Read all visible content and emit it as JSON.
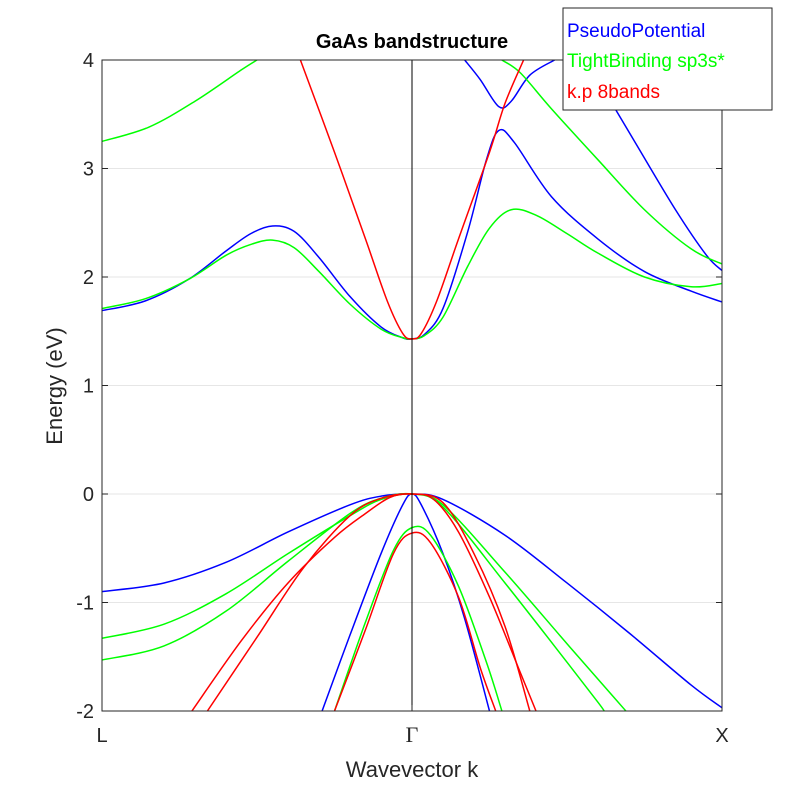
{
  "chart_data": {
    "type": "line",
    "title": "GaAs bandstructure",
    "xlabel": "Wavevector k",
    "ylabel": "Energy (eV)",
    "ylim": [
      -2,
      4
    ],
    "xlim": [
      -1,
      1
    ],
    "yticks": [
      -2,
      -1,
      0,
      1,
      2,
      3,
      4
    ],
    "ytick_labels": [
      "-2",
      "-1",
      "0",
      "1",
      "2",
      "3",
      "4"
    ],
    "xticks": [
      -1,
      0,
      1
    ],
    "xtick_labels": [
      "L",
      "Γ",
      "X"
    ],
    "grid": "horizontal",
    "legend_position": "top-right",
    "x_note": "x = -1 at L, 0 at Gamma, +1 at X",
    "series": [
      {
        "name": "PseudoPotential",
        "color": "#0000ff",
        "bands": [
          [
            [
              -1.0,
              1.69
            ],
            [
              -0.86,
              1.78
            ],
            [
              -0.72,
              1.98
            ],
            [
              -0.6,
              2.24
            ],
            [
              -0.52,
              2.4
            ],
            [
              -0.45,
              2.47
            ],
            [
              -0.38,
              2.42
            ],
            [
              -0.3,
              2.18
            ],
            [
              -0.2,
              1.82
            ],
            [
              -0.1,
              1.54
            ],
            [
              -0.03,
              1.44
            ],
            [
              0.0,
              1.43
            ],
            [
              0.04,
              1.47
            ],
            [
              0.1,
              1.71
            ],
            [
              0.18,
              2.42
            ],
            [
              0.24,
              3.08
            ],
            [
              0.28,
              3.35
            ],
            [
              0.33,
              3.24
            ],
            [
              0.45,
              2.74
            ],
            [
              0.6,
              2.35
            ],
            [
              0.75,
              2.05
            ],
            [
              0.9,
              1.87
            ],
            [
              1.0,
              1.77
            ]
          ],
          [
            [
              0.17,
              4.0
            ],
            [
              0.22,
              3.82
            ],
            [
              0.28,
              3.57
            ],
            [
              0.32,
              3.62
            ],
            [
              0.38,
              3.86
            ],
            [
              0.46,
              4.0
            ]
          ],
          [
            [
              0.56,
              4.0
            ],
            [
              0.62,
              3.72
            ],
            [
              0.72,
              3.24
            ],
            [
              0.85,
              2.62
            ],
            [
              0.95,
              2.2
            ],
            [
              1.0,
              2.06
            ]
          ],
          [
            [
              -1.0,
              -0.9
            ],
            [
              -0.8,
              -0.82
            ],
            [
              -0.6,
              -0.63
            ],
            [
              -0.4,
              -0.35
            ],
            [
              -0.2,
              -0.1
            ],
            [
              -0.1,
              -0.02
            ],
            [
              0.0,
              0.0
            ],
            [
              0.1,
              -0.05
            ],
            [
              0.3,
              -0.38
            ],
            [
              0.5,
              -0.82
            ],
            [
              0.7,
              -1.28
            ],
            [
              0.9,
              -1.76
            ],
            [
              1.0,
              -1.97
            ]
          ],
          [
            [
              -0.29,
              -2.0
            ],
            [
              -0.2,
              -1.3
            ],
            [
              -0.1,
              -0.55
            ],
            [
              -0.03,
              -0.1
            ],
            [
              0.0,
              0.0
            ],
            [
              0.03,
              -0.1
            ],
            [
              0.1,
              -0.55
            ],
            [
              0.17,
              -1.15
            ],
            [
              0.25,
              -2.0
            ]
          ]
        ]
      },
      {
        "name": "TightBinding sp3s*",
        "color": "#00ff00",
        "bands": [
          [
            [
              -1.0,
              1.71
            ],
            [
              -0.86,
              1.8
            ],
            [
              -0.72,
              1.98
            ],
            [
              -0.6,
              2.2
            ],
            [
              -0.52,
              2.3
            ],
            [
              -0.45,
              2.34
            ],
            [
              -0.38,
              2.27
            ],
            [
              -0.3,
              2.05
            ],
            [
              -0.2,
              1.75
            ],
            [
              -0.1,
              1.52
            ],
            [
              -0.03,
              1.44
            ],
            [
              0.0,
              1.43
            ],
            [
              0.04,
              1.46
            ],
            [
              0.1,
              1.63
            ],
            [
              0.18,
              2.1
            ],
            [
              0.25,
              2.45
            ],
            [
              0.32,
              2.62
            ],
            [
              0.4,
              2.57
            ],
            [
              0.5,
              2.4
            ],
            [
              0.6,
              2.22
            ],
            [
              0.75,
              2.0
            ],
            [
              0.9,
              1.91
            ],
            [
              1.0,
              1.94
            ]
          ],
          [
            [
              -1.0,
              3.25
            ],
            [
              -0.85,
              3.38
            ],
            [
              -0.7,
              3.62
            ],
            [
              -0.55,
              3.91
            ],
            [
              -0.5,
              4.0
            ]
          ],
          [
            [
              0.29,
              4.0
            ],
            [
              0.35,
              3.88
            ],
            [
              0.45,
              3.55
            ],
            [
              0.6,
              3.08
            ],
            [
              0.75,
              2.62
            ],
            [
              0.9,
              2.26
            ],
            [
              1.0,
              2.12
            ]
          ],
          [
            [
              -1.0,
              -1.33
            ],
            [
              -0.8,
              -1.2
            ],
            [
              -0.6,
              -0.92
            ],
            [
              -0.4,
              -0.55
            ],
            [
              -0.2,
              -0.2
            ],
            [
              -0.1,
              -0.05
            ],
            [
              0.0,
              0.0
            ],
            [
              0.1,
              -0.1
            ],
            [
              0.3,
              -0.72
            ],
            [
              0.5,
              -1.38
            ],
            [
              0.65,
              -1.87
            ],
            [
              0.69,
              -2.0
            ]
          ],
          [
            [
              -1.0,
              -1.53
            ],
            [
              -0.8,
              -1.4
            ],
            [
              -0.6,
              -1.08
            ],
            [
              -0.4,
              -0.62
            ],
            [
              -0.2,
              -0.18
            ],
            [
              -0.1,
              -0.04
            ],
            [
              0.0,
              0.0
            ],
            [
              0.1,
              -0.12
            ],
            [
              0.3,
              -0.82
            ],
            [
              0.5,
              -1.55
            ],
            [
              0.6,
              -1.92
            ],
            [
              0.62,
              -2.0
            ]
          ],
          [
            [
              -0.25,
              -2.0
            ],
            [
              -0.15,
              -1.18
            ],
            [
              -0.06,
              -0.52
            ],
            [
              0.0,
              -0.31
            ],
            [
              0.06,
              -0.38
            ],
            [
              0.15,
              -0.85
            ],
            [
              0.24,
              -1.55
            ],
            [
              0.29,
              -2.0
            ]
          ]
        ]
      },
      {
        "name": "k.p 8bands",
        "color": "#ff0000",
        "bands": [
          [
            [
              -0.36,
              4.0
            ],
            [
              -0.25,
              3.15
            ],
            [
              -0.15,
              2.35
            ],
            [
              -0.08,
              1.78
            ],
            [
              -0.03,
              1.48
            ],
            [
              0.0,
              1.43
            ],
            [
              0.03,
              1.48
            ],
            [
              0.08,
              1.78
            ],
            [
              0.15,
              2.35
            ],
            [
              0.25,
              3.15
            ],
            [
              0.3,
              3.6
            ],
            [
              0.36,
              4.0
            ]
          ],
          [
            [
              -0.71,
              -2.0
            ],
            [
              -0.55,
              -1.35
            ],
            [
              -0.4,
              -0.82
            ],
            [
              -0.25,
              -0.4
            ],
            [
              -0.15,
              -0.18
            ],
            [
              -0.07,
              -0.03
            ],
            [
              0.0,
              0.0
            ],
            [
              0.07,
              -0.05
            ],
            [
              0.15,
              -0.35
            ],
            [
              0.25,
              -0.95
            ],
            [
              0.35,
              -1.65
            ],
            [
              0.4,
              -2.0
            ]
          ],
          [
            [
              -0.66,
              -2.0
            ],
            [
              -0.5,
              -1.32
            ],
            [
              -0.35,
              -0.68
            ],
            [
              -0.2,
              -0.2
            ],
            [
              -0.1,
              -0.04
            ],
            [
              0.0,
              0.0
            ],
            [
              0.1,
              -0.08
            ],
            [
              0.2,
              -0.55
            ],
            [
              0.3,
              -1.22
            ],
            [
              0.38,
              -2.0
            ]
          ],
          [
            [
              -0.25,
              -2.0
            ],
            [
              -0.15,
              -1.25
            ],
            [
              -0.06,
              -0.55
            ],
            [
              0.0,
              -0.36
            ],
            [
              0.06,
              -0.45
            ],
            [
              0.15,
              -0.95
            ],
            [
              0.22,
              -1.6
            ],
            [
              0.27,
              -2.0
            ]
          ]
        ]
      }
    ]
  }
}
